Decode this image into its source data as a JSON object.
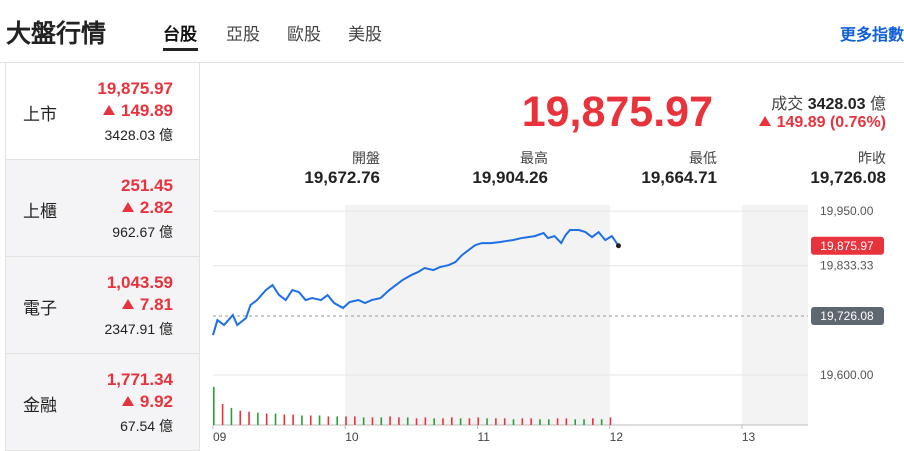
{
  "header": {
    "title": "大盤行情",
    "tabs": [
      "台股",
      "亞股",
      "歐股",
      "美股"
    ],
    "more_link": "更多指數"
  },
  "markets": [
    {
      "name": "上市",
      "price": "19,875.97",
      "change": "149.89",
      "volume": "3428.03 億"
    },
    {
      "name": "上櫃",
      "price": "251.45",
      "change": "2.82",
      "volume": "962.67 億"
    },
    {
      "name": "電子",
      "price": "1,043.59",
      "change": "7.81",
      "volume": "2347.91 億"
    },
    {
      "name": "金融",
      "price": "1,771.34",
      "change": "9.92",
      "volume": "67.54 億"
    }
  ],
  "summary": {
    "price": "19,875.97",
    "volume_label": "成交",
    "volume": "3428.03",
    "volume_unit": "億",
    "change": "149.89 (0.76%)"
  },
  "stats": [
    {
      "label": "開盤",
      "value": "19,672.76"
    },
    {
      "label": "最高",
      "value": "19,904.26"
    },
    {
      "label": "最低",
      "value": "19,664.71"
    },
    {
      "label": "昨收",
      "value": "19,726.08"
    }
  ],
  "chart_data": {
    "type": "line",
    "color": "#1e6fe6",
    "x": [
      0,
      2,
      5,
      9,
      11,
      15,
      17,
      20,
      24,
      27,
      30,
      33,
      36,
      39,
      42,
      45,
      49,
      52,
      55,
      59,
      62,
      66,
      69,
      72,
      76,
      80,
      83,
      86,
      90,
      93,
      96,
      100,
      103,
      107,
      110,
      113,
      116,
      119,
      122,
      126,
      130,
      133,
      136,
      140,
      143,
      146,
      150,
      152,
      155,
      158,
      160,
      162,
      166,
      169,
      172,
      175,
      178,
      181,
      184
    ],
    "values": [
      19685.4,
      19717.4,
      19706.7,
      19728.1,
      19706.7,
      19721.7,
      19749.4,
      19760.1,
      19781.4,
      19792.1,
      19770.7,
      19760.1,
      19781.4,
      19777.1,
      19760.1,
      19764.3,
      19760.1,
      19770.7,
      19753.7,
      19743.0,
      19755.8,
      19760.1,
      19753.7,
      19760.1,
      19764.3,
      19781.4,
      19792.1,
      19802.8,
      19813.4,
      19819.8,
      19828.4,
      19824.1,
      19830.5,
      19834.8,
      19841.2,
      19856.1,
      19866.8,
      19877.4,
      19881.7,
      19881.7,
      19883.8,
      19886.0,
      19888.1,
      19892.4,
      19894.5,
      19896.6,
      19903.1,
      19892.4,
      19896.6,
      19881.7,
      19898.8,
      19909.5,
      19909.5,
      19905.2,
      19894.5,
      19905.2,
      19888.1,
      19896.6,
      19875.97
    ],
    "xlim": [
      0,
      270
    ],
    "xticks": [
      {
        "value": 0,
        "label": "09"
      },
      {
        "value": 60,
        "label": "10"
      },
      {
        "value": 120,
        "label": "11"
      },
      {
        "value": 180,
        "label": "12"
      },
      {
        "value": 240,
        "label": "13"
      }
    ],
    "ylim": [
      19583,
      19963
    ],
    "yticks": [
      {
        "value": 19950,
        "label": "19,950.00"
      },
      {
        "value": 19833.33,
        "label": "19,833.33"
      },
      {
        "value": 19600,
        "label": "19,600.00"
      }
    ],
    "reference": {
      "value": 19726.08,
      "label": "19,726.08"
    },
    "last_label": "19,875.97",
    "volume": {
      "ylim": [
        0,
        42
      ],
      "x": [
        0,
        4,
        8,
        12,
        16,
        20,
        24,
        28,
        32,
        36,
        40,
        44,
        48,
        52,
        56,
        60,
        64,
        68,
        72,
        76,
        80,
        84,
        88,
        92,
        96,
        100,
        104,
        108,
        112,
        116,
        120,
        124,
        128,
        132,
        136,
        140,
        144,
        148,
        152,
        156,
        160,
        164,
        168,
        172,
        176,
        180
      ],
      "values": [
        40,
        22,
        18,
        15,
        14,
        13,
        12,
        12,
        11,
        11,
        10,
        10,
        10,
        9,
        9,
        9,
        9,
        8,
        8,
        8,
        9,
        8,
        8,
        7,
        8,
        7,
        7,
        8,
        7,
        7,
        8,
        7,
        7,
        7,
        6,
        7,
        7,
        6,
        6,
        7,
        7,
        6,
        6,
        7,
        6,
        8
      ],
      "colors": [
        "#2a9d3a",
        "#e8323c",
        "#2a9d3a",
        "#e8323c",
        "#e8323c",
        "#2a9d3a",
        "#e8323c",
        "#2a9d3a",
        "#e8323c",
        "#e8323c",
        "#2a9d3a",
        "#e8323c",
        "#2a9d3a",
        "#e8323c",
        "#2a9d3a",
        "#e8323c",
        "#e8323c",
        "#2a9d3a",
        "#e8323c",
        "#2a9d3a",
        "#e8323c",
        "#e8323c",
        "#2a9d3a",
        "#e8323c",
        "#e8323c",
        "#2a9d3a",
        "#e8323c",
        "#e8323c",
        "#2a9d3a",
        "#e8323c",
        "#e8323c",
        "#2a9d3a",
        "#e8323c",
        "#e8323c",
        "#2a9d3a",
        "#e8323c",
        "#e8323c",
        "#2a9d3a",
        "#2a9d3a",
        "#e8323c",
        "#e8323c",
        "#2a9d3a",
        "#2a9d3a",
        "#e8323c",
        "#2a9d3a",
        "#e8323c"
      ]
    }
  }
}
